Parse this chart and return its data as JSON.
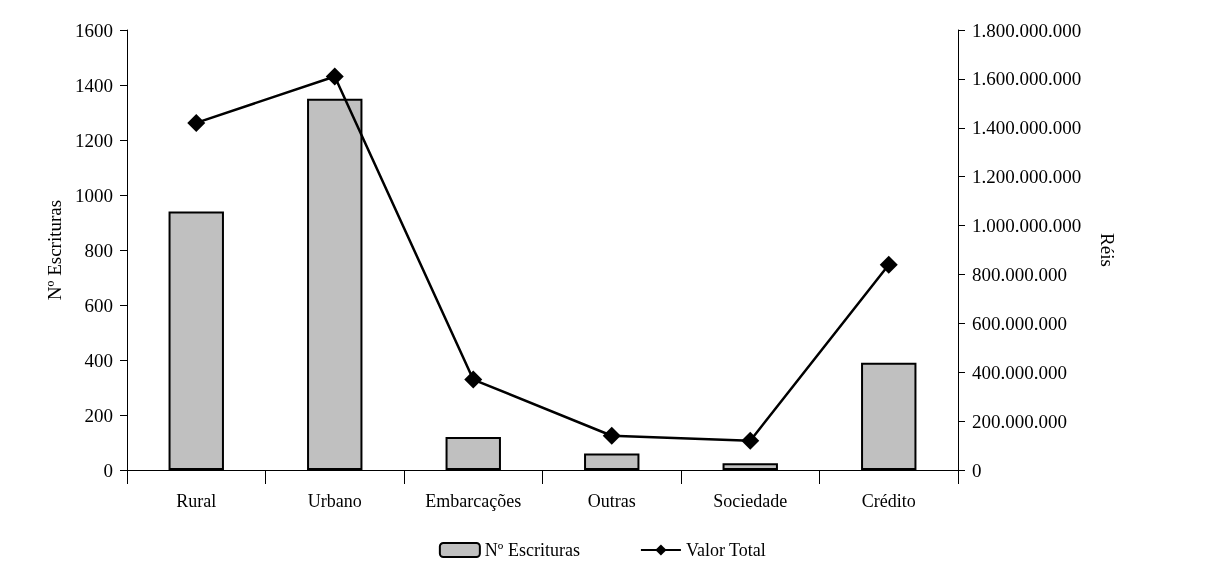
{
  "chart_data": {
    "type": "bar",
    "categories": [
      "Rural",
      "Urbano",
      "Embarcações",
      "Outras",
      "Sociedade",
      "Crédito"
    ],
    "ylabel": "Nº Escrituras",
    "y2label": "Réis",
    "series": [
      {
        "name": "Nº Escrituras",
        "color": "#c0c0c0",
        "values": [
          940,
          1350,
          120,
          60,
          25,
          390
        ]
      },
      {
        "name": "Valor Total",
        "type": "line",
        "axis": "y2",
        "color": "#000000",
        "marker": "diamond",
        "line_style": "solid",
        "values": [
          1420000000,
          1610000000,
          370000000,
          140000000,
          120000000,
          840000000
        ]
      }
    ],
    "ylim": [
      0,
      1600
    ],
    "yticks": [
      0,
      200,
      400,
      600,
      800,
      1000,
      1200,
      1400,
      1600
    ],
    "y2lim": [
      0,
      1800000000
    ],
    "y2ticks": [
      0,
      {
        "value": 200000000,
        "label": "200.000.000"
      },
      {
        "value": 400000000,
        "label": "400.000.000"
      },
      {
        "value": 600000000,
        "label": "600.000.000"
      },
      {
        "value": 800000000,
        "label": "800.000.000"
      },
      {
        "value": 1000000000,
        "label": "1.000.000.000"
      },
      {
        "value": 1200000000,
        "label": "1.200.000.000"
      },
      {
        "value": 1400000000,
        "label": "1.400.000.000"
      },
      {
        "value": 1600000000,
        "label": "1.600.000.000"
      },
      {
        "value": 1800000000,
        "label": "1.800.000.000"
      }
    ],
    "grid": false,
    "legend": "bottom"
  }
}
